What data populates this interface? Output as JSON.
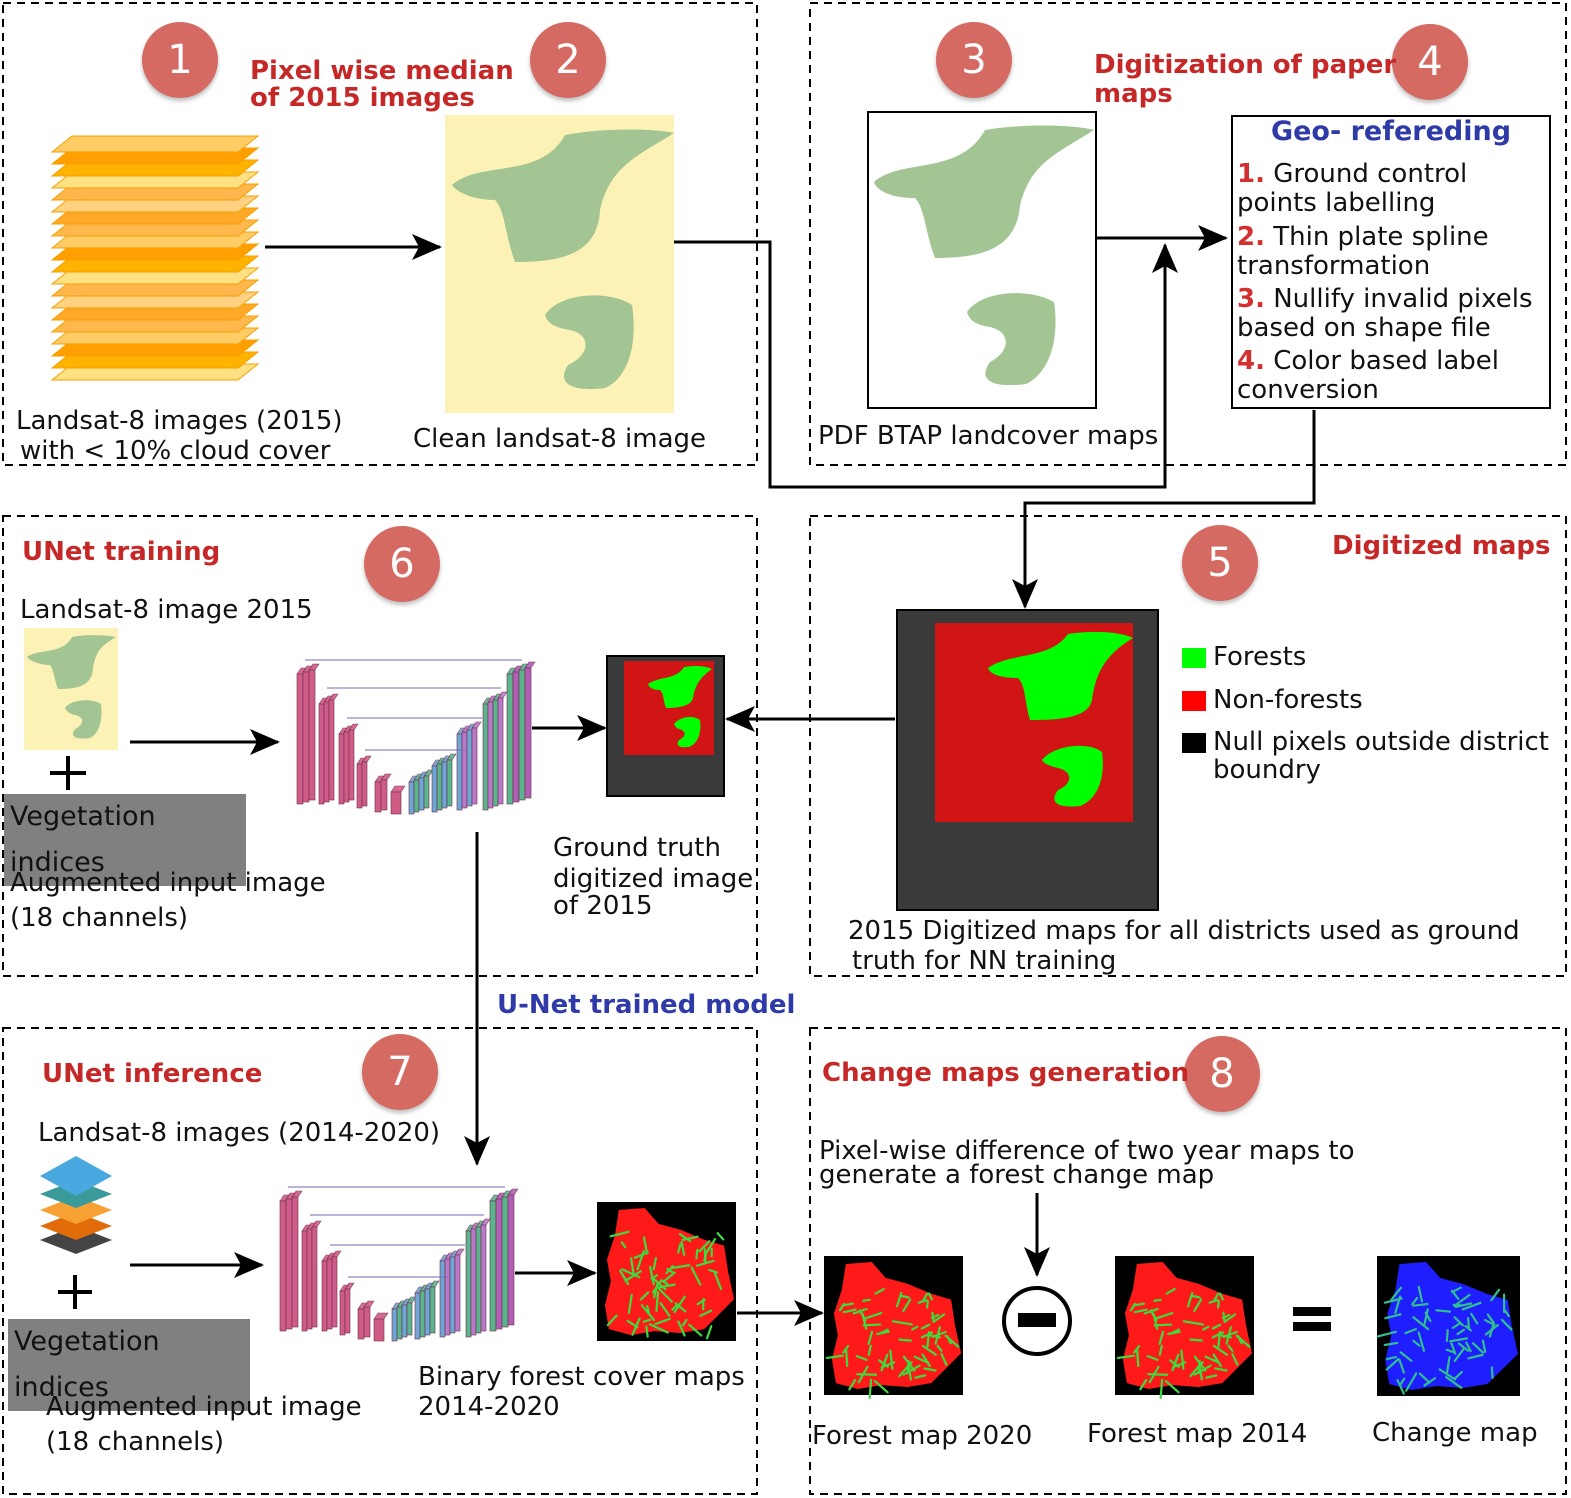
{
  "steps": {
    "s1": "1",
    "s2": "2",
    "s3": "3",
    "s4": "4",
    "s5": "5",
    "s6": "6",
    "s7": "7",
    "s8": "8"
  },
  "box1": {
    "title_line1": "Pixel wise median",
    "title_line2": "of 2015 images",
    "input_caption_line1": "Landsat-8 images (2015)",
    "input_caption_line2": "with < 10% cloud cover",
    "output_caption": "Clean landsat-8 image"
  },
  "box2": {
    "title_line1": "Digitization of paper",
    "title_line2": "maps",
    "map_caption": "PDF BTAP landcover maps",
    "georef_title": "Geo- refereding",
    "georef_steps": [
      {
        "n": "1.",
        "text": "Ground control points labelling"
      },
      {
        "n": "2.",
        "text": "Thin plate spline transformation"
      },
      {
        "n": "3.",
        "text": "Nullify invalid pixels based on shape file"
      },
      {
        "n": "4.",
        "text": "Color based label conversion"
      }
    ]
  },
  "box3": {
    "title": "UNet training",
    "input_label": "Landsat-8 image 2015",
    "plus": "+",
    "veg_label": "Vegetation indices",
    "aug_line1": "Augmented input image",
    "aug_line2": "(18 channels)",
    "gt_line1": "Ground truth",
    "gt_line2": "digitized image",
    "gt_line3": "of 2015"
  },
  "box4": {
    "title": "Digitized maps",
    "legend": [
      {
        "label": "Forests",
        "color": "#00ff00"
      },
      {
        "label": "Non-forests",
        "color": "#ff0000"
      },
      {
        "label": "Null pixels outside district",
        "label2": "boundry",
        "color": "#000000"
      }
    ],
    "caption_line1": "2015 Digitized maps for all districts used as ground",
    "caption_line2": "truth for NN training"
  },
  "model_label": "U-Net trained model",
  "box5": {
    "title": "UNet inference",
    "input_label": "Landsat-8 images (2014-2020)",
    "plus": "+",
    "veg_label": "Vegetation  indices",
    "aug_line1": "Augmented input image",
    "aug_line2": "(18 channels)",
    "out_line1": "Binary forest cover maps",
    "out_line2": "2014-2020"
  },
  "box6": {
    "title": "Change maps generation",
    "desc_line1": "Pixel-wise difference of two year maps to",
    "desc_line2": "generate a forest change map",
    "map_a": "Forest map 2020",
    "map_b": "Forest map 2014",
    "map_c": "Change map"
  },
  "colors": {
    "step_circle": "#d46a62",
    "title_red": "#c62828",
    "title_blue": "#2e3aa8",
    "forest_green": "#00ff00",
    "nonforest_red": "#ff0000",
    "map_green": "#a3c594",
    "image_bg": "#fdf2b5"
  }
}
